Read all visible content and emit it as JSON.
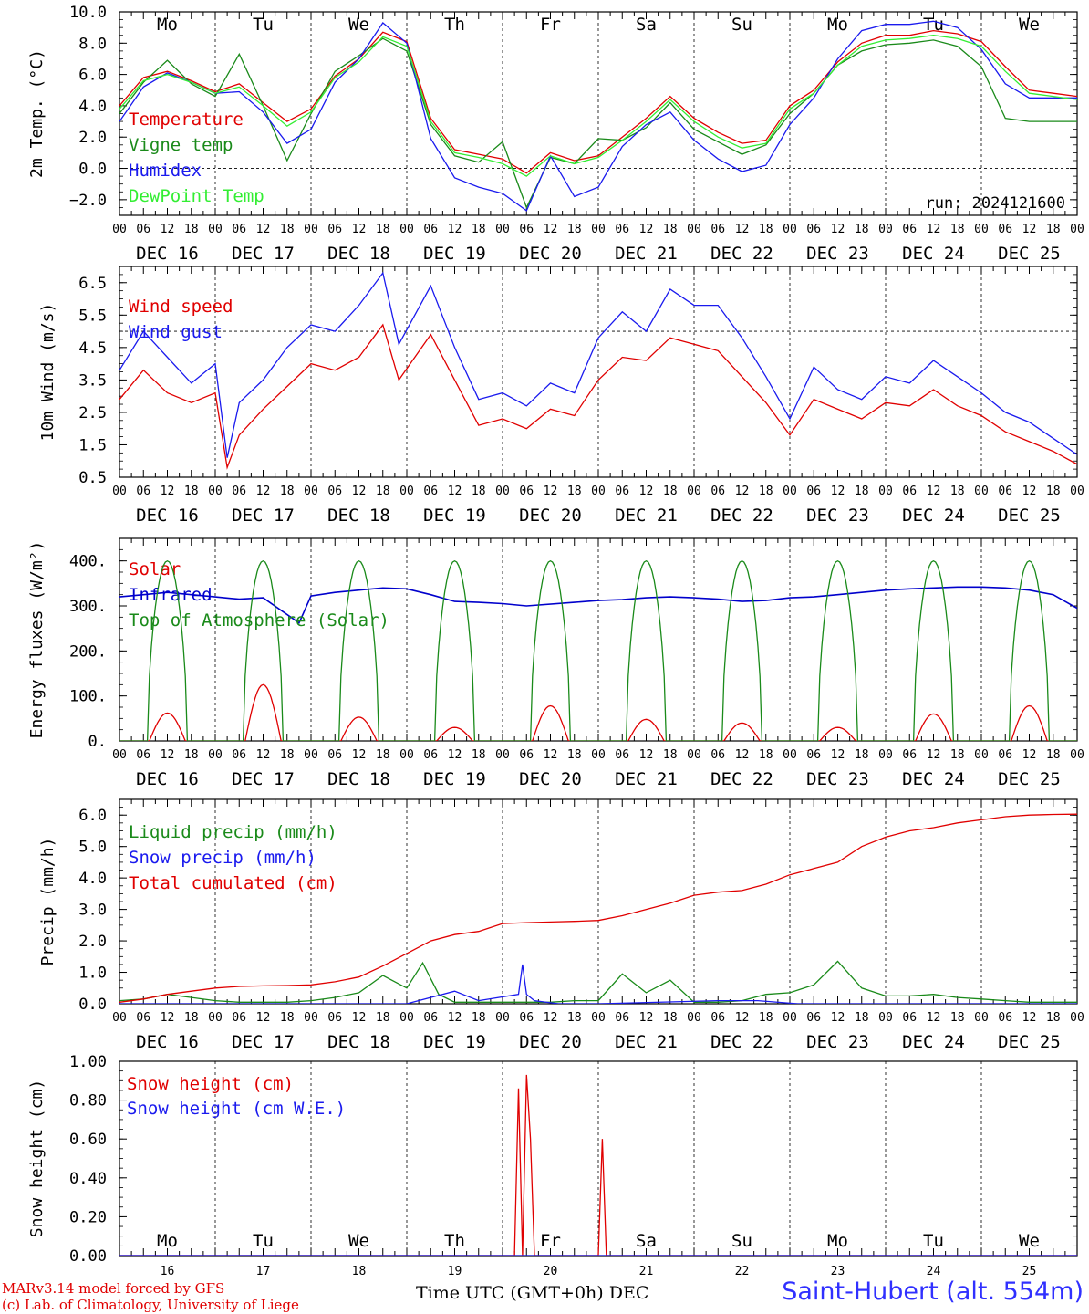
{
  "footer": {
    "model_line": "MARv3.14 model forced by GFS",
    "credit_line": "(c) Lab. of Climatology, University of Liege",
    "xlabel": "Time UTC (GMT+0h) DEC",
    "site": "Saint-Hubert (alt. 554m)",
    "run": "run: 2024121600"
  },
  "colors": {
    "red": "#e00000",
    "green": "#1a8a1a",
    "blue": "#1a1aee",
    "lightgreen": "#33ee33",
    "darkblue": "#0000cc",
    "weekday": "#000000",
    "weekend": "#e00000"
  },
  "days": {
    "weekday_names": [
      "Mo",
      "Tu",
      "We",
      "Th",
      "Fr",
      "Sa",
      "Su",
      "Mo",
      "Tu",
      "We"
    ],
    "weekend": [
      false,
      false,
      false,
      false,
      false,
      true,
      true,
      false,
      false,
      false
    ],
    "date_labels": [
      "DEC 16",
      "DEC 17",
      "DEC 18",
      "DEC 19",
      "DEC 20",
      "DEC 21",
      "DEC 22",
      "DEC 23",
      "DEC 24",
      "DEC 25"
    ],
    "day_numbers": [
      "16",
      "17",
      "18",
      "19",
      "20",
      "21",
      "22",
      "23",
      "24",
      "25"
    ],
    "hour_ticks": [
      "00",
      "06",
      "12",
      "18"
    ],
    "final_tick": "00"
  },
  "chart_data": [
    {
      "type": "line",
      "ylabel": "2m Temp. (°C)",
      "ylim": [
        -3,
        10
      ],
      "yticks": [
        "10.0",
        "8.0",
        "6.0",
        "4.0",
        "2.0",
        "0.0",
        "−2.0"
      ],
      "ytick_values": [
        10,
        8,
        6,
        4,
        2,
        0,
        -2
      ],
      "reference_line": 0,
      "x_unit": "hours since DEC 16 00 UTC",
      "series": [
        {
          "name": "Temperature",
          "color": "red",
          "x": [
            0,
            6,
            12,
            18,
            24,
            30,
            36,
            42,
            48,
            54,
            60,
            66,
            72,
            78,
            84,
            90,
            96,
            102,
            108,
            114,
            120,
            126,
            132,
            138,
            144,
            150,
            156,
            162,
            168,
            174,
            180,
            186,
            192,
            198,
            204,
            210,
            216,
            222,
            228,
            234,
            240
          ],
          "y": [
            4.0,
            5.8,
            6.2,
            5.6,
            4.9,
            5.4,
            4.2,
            3.0,
            3.8,
            5.9,
            7.0,
            8.7,
            8.1,
            3.2,
            1.2,
            0.9,
            0.6,
            -0.3,
            1.0,
            0.5,
            0.8,
            2.0,
            3.2,
            4.6,
            3.2,
            2.3,
            1.6,
            1.8,
            4.0,
            5.0,
            6.8,
            8.0,
            8.5,
            8.5,
            8.8,
            8.6,
            8.1,
            6.5,
            5.0,
            4.8,
            4.6
          ]
        },
        {
          "name": "Vigne temp",
          "color": "green",
          "x": [
            0,
            6,
            12,
            18,
            24,
            30,
            36,
            42,
            48,
            54,
            60,
            66,
            72,
            78,
            84,
            90,
            96,
            102,
            108,
            114,
            120,
            126,
            132,
            138,
            144,
            150,
            156,
            162,
            168,
            174,
            180,
            186,
            192,
            198,
            204,
            210,
            216,
            222,
            228,
            234,
            240
          ],
          "y": [
            3.5,
            5.5,
            6.9,
            5.4,
            4.6,
            7.3,
            4.0,
            0.5,
            3.5,
            6.2,
            7.2,
            8.3,
            7.5,
            2.8,
            0.8,
            0.4,
            1.7,
            -2.5,
            0.7,
            0.3,
            1.9,
            1.8,
            2.6,
            4.2,
            2.5,
            1.7,
            0.9,
            1.5,
            3.5,
            4.8,
            6.6,
            7.5,
            7.9,
            8.0,
            8.2,
            7.8,
            6.5,
            3.2,
            3.0,
            3.0,
            3.0
          ]
        },
        {
          "name": "Humidex",
          "color": "blue",
          "x": [
            0,
            6,
            12,
            18,
            24,
            30,
            36,
            42,
            48,
            54,
            60,
            66,
            72,
            78,
            84,
            90,
            96,
            102,
            108,
            114,
            120,
            126,
            132,
            138,
            144,
            150,
            156,
            162,
            168,
            174,
            180,
            186,
            192,
            198,
            204,
            210,
            216,
            222,
            228,
            234,
            240
          ],
          "y": [
            3.0,
            5.2,
            6.1,
            5.5,
            4.8,
            4.9,
            3.6,
            1.6,
            2.5,
            5.5,
            7.0,
            9.3,
            8.0,
            1.9,
            -0.6,
            -1.2,
            -1.6,
            -2.7,
            0.8,
            -1.8,
            -1.2,
            1.4,
            2.8,
            3.6,
            1.8,
            0.6,
            -0.2,
            0.2,
            2.8,
            4.5,
            7.0,
            8.8,
            9.2,
            9.2,
            9.4,
            9.0,
            7.6,
            5.4,
            4.5,
            4.5,
            4.5
          ]
        },
        {
          "name": "DewPoint Temp",
          "color": "lightgreen",
          "x": [
            0,
            6,
            12,
            18,
            24,
            30,
            36,
            42,
            48,
            54,
            60,
            66,
            72,
            78,
            84,
            90,
            96,
            102,
            108,
            114,
            120,
            126,
            132,
            138,
            144,
            150,
            156,
            162,
            168,
            174,
            180,
            186,
            192,
            198,
            204,
            210,
            216,
            222,
            228,
            234,
            240
          ],
          "y": [
            3.8,
            5.6,
            6.0,
            5.5,
            4.8,
            5.2,
            4.0,
            2.7,
            3.6,
            5.8,
            6.8,
            8.4,
            7.8,
            3.0,
            1.0,
            0.7,
            0.3,
            -0.5,
            0.8,
            0.3,
            0.7,
            1.8,
            3.0,
            4.4,
            3.0,
            2.0,
            1.3,
            1.6,
            3.8,
            4.8,
            6.6,
            7.8,
            8.2,
            8.3,
            8.5,
            8.3,
            7.8,
            6.2,
            4.8,
            4.6,
            4.4
          ]
        }
      ]
    },
    {
      "type": "line",
      "ylabel": "10m Wind (m/s)",
      "ylim": [
        0.5,
        7.0
      ],
      "yticks": [
        "6.5",
        "5.5",
        "4.5",
        "3.5",
        "2.5",
        "1.5",
        "0.5"
      ],
      "ytick_values": [
        6.5,
        5.5,
        4.5,
        3.5,
        2.5,
        1.5,
        0.5
      ],
      "reference_line": 5,
      "x_unit": "hours since DEC 16 00 UTC",
      "series": [
        {
          "name": "Wind speed",
          "color": "red",
          "x": [
            0,
            6,
            12,
            18,
            24,
            27,
            30,
            36,
            42,
            48,
            54,
            60,
            66,
            70,
            78,
            84,
            90,
            96,
            102,
            108,
            114,
            120,
            126,
            132,
            138,
            144,
            150,
            156,
            162,
            168,
            174,
            180,
            186,
            192,
            198,
            204,
            210,
            216,
            222,
            228,
            234,
            240
          ],
          "y": [
            2.9,
            3.8,
            3.1,
            2.8,
            3.1,
            0.8,
            1.8,
            2.6,
            3.3,
            4.0,
            3.8,
            4.2,
            5.2,
            3.5,
            4.9,
            3.5,
            2.1,
            2.3,
            2.0,
            2.6,
            2.4,
            3.5,
            4.2,
            4.1,
            4.8,
            4.6,
            4.4,
            3.6,
            2.8,
            1.8,
            2.9,
            2.6,
            2.3,
            2.8,
            2.7,
            3.2,
            2.7,
            2.4,
            1.9,
            1.6,
            1.3,
            0.9
          ]
        },
        {
          "name": "Wind gust",
          "color": "blue",
          "x": [
            0,
            6,
            12,
            18,
            24,
            27,
            30,
            36,
            42,
            48,
            54,
            60,
            66,
            70,
            78,
            84,
            90,
            96,
            102,
            108,
            114,
            120,
            126,
            132,
            138,
            144,
            150,
            156,
            162,
            168,
            174,
            180,
            186,
            192,
            198,
            204,
            210,
            216,
            222,
            228,
            234,
            240
          ],
          "y": [
            3.8,
            5.0,
            4.2,
            3.4,
            4.0,
            1.1,
            2.8,
            3.5,
            4.5,
            5.2,
            5.0,
            5.8,
            6.8,
            4.6,
            6.4,
            4.5,
            2.9,
            3.1,
            2.7,
            3.4,
            3.1,
            4.8,
            5.6,
            5.0,
            6.3,
            5.8,
            5.8,
            4.8,
            3.6,
            2.3,
            3.9,
            3.2,
            2.9,
            3.6,
            3.4,
            4.1,
            3.6,
            3.1,
            2.5,
            2.2,
            1.7,
            1.2
          ]
        }
      ]
    },
    {
      "type": "line",
      "ylabel": "Energy fluxes (W/m²)",
      "ylim": [
        0,
        450
      ],
      "yticks": [
        "400.",
        "300.",
        "200.",
        "100.",
        "0."
      ],
      "ytick_values": [
        400,
        300,
        200,
        100,
        0
      ],
      "x_unit": "hours since DEC 16 00 UTC",
      "daily_peaks": {
        "solar": [
          62,
          125,
          53,
          30,
          78,
          48,
          40,
          30,
          60,
          78
        ],
        "toa": [
          400,
          400,
          400,
          400,
          400,
          400,
          400,
          400,
          400,
          400
        ]
      },
      "series": [
        {
          "name": "Solar",
          "color": "red",
          "x": [],
          "y": []
        },
        {
          "name": "Infrared",
          "color": "darkblue",
          "x": [
            0,
            6,
            12,
            18,
            24,
            30,
            36,
            45,
            48,
            54,
            60,
            66,
            72,
            78,
            84,
            90,
            96,
            102,
            114,
            120,
            126,
            132,
            138,
            144,
            150,
            156,
            162,
            168,
            174,
            180,
            186,
            192,
            198,
            204,
            210,
            216,
            222,
            228,
            234,
            240
          ],
          "y": [
            320,
            325,
            330,
            325,
            320,
            315,
            318,
            262,
            322,
            330,
            335,
            340,
            338,
            325,
            310,
            308,
            305,
            300,
            308,
            312,
            314,
            318,
            320,
            318,
            315,
            310,
            312,
            318,
            320,
            325,
            330,
            335,
            338,
            340,
            342,
            342,
            340,
            335,
            325,
            295
          ]
        },
        {
          "name": "Top of Atmosphere (Solar)",
          "color": "green",
          "x": [],
          "y": []
        }
      ]
    },
    {
      "type": "line",
      "ylabel": "Precip (mm/h)",
      "ylim": [
        0,
        6.5
      ],
      "yticks": [
        "6.0",
        "5.0",
        "4.0",
        "3.0",
        "2.0",
        "1.0",
        "0.0"
      ],
      "ytick_values": [
        6,
        5,
        4,
        3,
        2,
        1,
        0
      ],
      "x_unit": "hours since DEC 16 00 UTC",
      "series": [
        {
          "name": "Liquid precip (mm/h)",
          "color": "green",
          "x": [
            0,
            6,
            12,
            18,
            24,
            30,
            36,
            42,
            48,
            54,
            60,
            66,
            72,
            76,
            80,
            84,
            90,
            96,
            102,
            108,
            114,
            120,
            126,
            132,
            138,
            144,
            150,
            156,
            162,
            168,
            174,
            180,
            186,
            192,
            198,
            204,
            210,
            216,
            222,
            228,
            234,
            240
          ],
          "y": [
            0.1,
            0.15,
            0.3,
            0.2,
            0.1,
            0.05,
            0.05,
            0.05,
            0.1,
            0.2,
            0.35,
            0.9,
            0.5,
            1.3,
            0.3,
            0.05,
            0.05,
            0.05,
            0.05,
            0.05,
            0.1,
            0.1,
            0.95,
            0.35,
            0.75,
            0.05,
            0.05,
            0.1,
            0.3,
            0.35,
            0.6,
            1.35,
            0.5,
            0.25,
            0.25,
            0.3,
            0.2,
            0.15,
            0.1,
            0.05,
            0.05,
            0.05
          ]
        },
        {
          "name": "Snow precip (mm/h)",
          "color": "blue",
          "x": [
            0,
            72,
            84,
            90,
            100,
            101,
            102,
            104,
            110,
            120,
            150,
            160,
            170,
            240
          ],
          "y": [
            0,
            0,
            0.4,
            0.1,
            0.3,
            1.25,
            0.3,
            0.1,
            0,
            0,
            0.1,
            0.1,
            0,
            0
          ]
        },
        {
          "name": "Total cumulated (cm)",
          "color": "red",
          "x": [
            0,
            6,
            12,
            18,
            24,
            30,
            36,
            42,
            48,
            54,
            60,
            66,
            72,
            78,
            84,
            90,
            96,
            102,
            108,
            114,
            120,
            126,
            132,
            138,
            144,
            150,
            156,
            162,
            168,
            174,
            180,
            186,
            192,
            198,
            204,
            210,
            216,
            222,
            228,
            234,
            240
          ],
          "y": [
            0.05,
            0.15,
            0.3,
            0.4,
            0.5,
            0.55,
            0.57,
            0.58,
            0.6,
            0.7,
            0.85,
            1.2,
            1.6,
            2.0,
            2.2,
            2.3,
            2.55,
            2.58,
            2.6,
            2.62,
            2.65,
            2.8,
            3.0,
            3.2,
            3.45,
            3.55,
            3.6,
            3.8,
            4.1,
            4.3,
            4.5,
            5.0,
            5.3,
            5.5,
            5.6,
            5.75,
            5.85,
            5.95,
            6.0,
            6.02,
            6.03
          ]
        }
      ]
    },
    {
      "type": "line",
      "ylabel": "Snow height (cm)",
      "ylim": [
        0,
        1.0
      ],
      "yticks": [
        "1.00",
        "0.80",
        "0.60",
        "0.40",
        "0.20",
        "0.00"
      ],
      "ytick_values": [
        1.0,
        0.8,
        0.6,
        0.4,
        0.2,
        0.0
      ],
      "x_unit": "hours since DEC 16 00 UTC",
      "series": [
        {
          "name": "Snow height (cm)",
          "color": "red",
          "x": [
            0,
            99,
            100,
            101,
            102,
            103,
            104,
            105,
            106,
            120,
            121,
            122,
            123,
            240
          ],
          "y": [
            0,
            0,
            0.86,
            0,
            0.93,
            0.6,
            0,
            0,
            0,
            0,
            0.6,
            0,
            0,
            0
          ]
        },
        {
          "name": "Snow height (cm W.E.)",
          "color": "blue",
          "x": [
            0,
            240
          ],
          "y": [
            0,
            0
          ]
        }
      ]
    }
  ]
}
